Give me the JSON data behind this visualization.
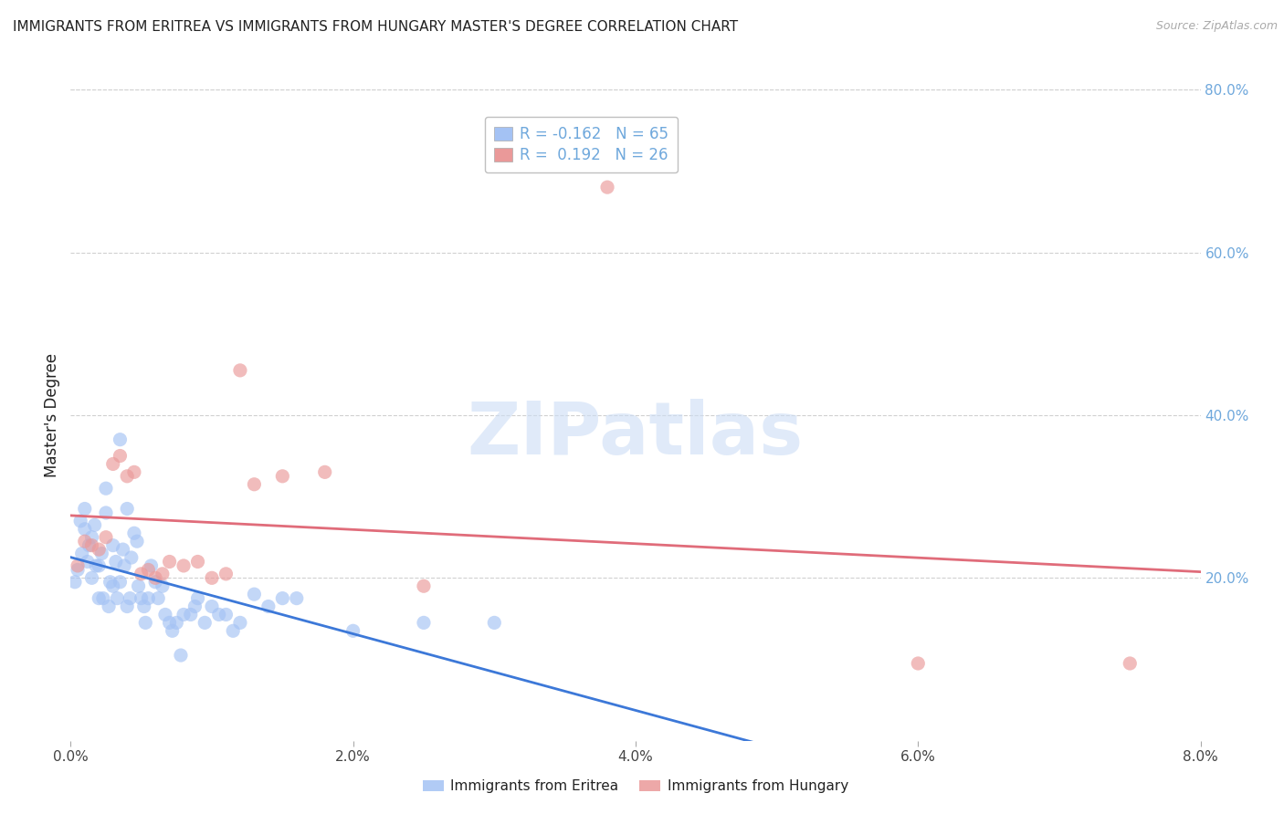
{
  "title": "IMMIGRANTS FROM ERITREA VS IMMIGRANTS FROM HUNGARY MASTER'S DEGREE CORRELATION CHART",
  "source": "Source: ZipAtlas.com",
  "ylabel": "Master's Degree",
  "xlabel": "",
  "xlim": [
    0.0,
    0.08
  ],
  "ylim": [
    0.0,
    0.8
  ],
  "xticks": [
    0.0,
    0.02,
    0.04,
    0.06,
    0.08
  ],
  "xticklabels": [
    "0.0%",
    "2.0%",
    "4.0%",
    "6.0%",
    "8.0%"
  ],
  "yticks_right": [
    0.2,
    0.4,
    0.6,
    0.8
  ],
  "yticklabels_right": [
    "20.0%",
    "40.0%",
    "60.0%",
    "80.0%"
  ],
  "grid_color": "#d0d0d0",
  "background_color": "#ffffff",
  "watermark_text": "ZIPatlas",
  "series_eritrea": {
    "color": "#a4c2f4",
    "R": -0.162,
    "N": 65,
    "label": "Immigrants from Eritrea",
    "x": [
      0.0003,
      0.0005,
      0.0007,
      0.0008,
      0.001,
      0.001,
      0.0012,
      0.0013,
      0.0015,
      0.0015,
      0.0017,
      0.0018,
      0.002,
      0.002,
      0.0022,
      0.0023,
      0.0025,
      0.0025,
      0.0027,
      0.0028,
      0.003,
      0.003,
      0.0032,
      0.0033,
      0.0035,
      0.0035,
      0.0037,
      0.0038,
      0.004,
      0.004,
      0.0042,
      0.0043,
      0.0045,
      0.0047,
      0.0048,
      0.005,
      0.0052,
      0.0053,
      0.0055,
      0.0057,
      0.006,
      0.0062,
      0.0065,
      0.0067,
      0.007,
      0.0072,
      0.0075,
      0.0078,
      0.008,
      0.0085,
      0.0088,
      0.009,
      0.0095,
      0.01,
      0.0105,
      0.011,
      0.0115,
      0.012,
      0.013,
      0.014,
      0.015,
      0.016,
      0.02,
      0.025,
      0.03
    ],
    "y": [
      0.195,
      0.21,
      0.27,
      0.23,
      0.285,
      0.26,
      0.22,
      0.24,
      0.2,
      0.25,
      0.265,
      0.215,
      0.215,
      0.175,
      0.23,
      0.175,
      0.31,
      0.28,
      0.165,
      0.195,
      0.24,
      0.19,
      0.22,
      0.175,
      0.195,
      0.37,
      0.235,
      0.215,
      0.165,
      0.285,
      0.175,
      0.225,
      0.255,
      0.245,
      0.19,
      0.175,
      0.165,
      0.145,
      0.175,
      0.215,
      0.195,
      0.175,
      0.19,
      0.155,
      0.145,
      0.135,
      0.145,
      0.105,
      0.155,
      0.155,
      0.165,
      0.175,
      0.145,
      0.165,
      0.155,
      0.155,
      0.135,
      0.145,
      0.18,
      0.165,
      0.175,
      0.175,
      0.135,
      0.145,
      0.145
    ]
  },
  "series_hungary": {
    "color": "#ea9999",
    "R": 0.192,
    "N": 26,
    "label": "Immigrants from Hungary",
    "x": [
      0.0005,
      0.001,
      0.0015,
      0.002,
      0.0025,
      0.003,
      0.0035,
      0.004,
      0.0045,
      0.005,
      0.0055,
      0.006,
      0.0065,
      0.007,
      0.008,
      0.009,
      0.01,
      0.011,
      0.012,
      0.013,
      0.015,
      0.018,
      0.025,
      0.038,
      0.06,
      0.075
    ],
    "y": [
      0.215,
      0.245,
      0.24,
      0.235,
      0.25,
      0.34,
      0.35,
      0.325,
      0.33,
      0.205,
      0.21,
      0.2,
      0.205,
      0.22,
      0.215,
      0.22,
      0.2,
      0.205,
      0.455,
      0.315,
      0.325,
      0.33,
      0.19,
      0.68,
      0.095,
      0.095
    ]
  },
  "line_eritrea_color": "#3c78d8",
  "line_hungary_color": "#e06c7a",
  "legend_facecolor": "#ffffff",
  "legend_edgecolor": "#c0c0c0",
  "title_color": "#222222",
  "right_axis_color": "#6fa8dc",
  "tick_color": "#444444",
  "marker_size": 120,
  "marker_alpha": 0.65
}
